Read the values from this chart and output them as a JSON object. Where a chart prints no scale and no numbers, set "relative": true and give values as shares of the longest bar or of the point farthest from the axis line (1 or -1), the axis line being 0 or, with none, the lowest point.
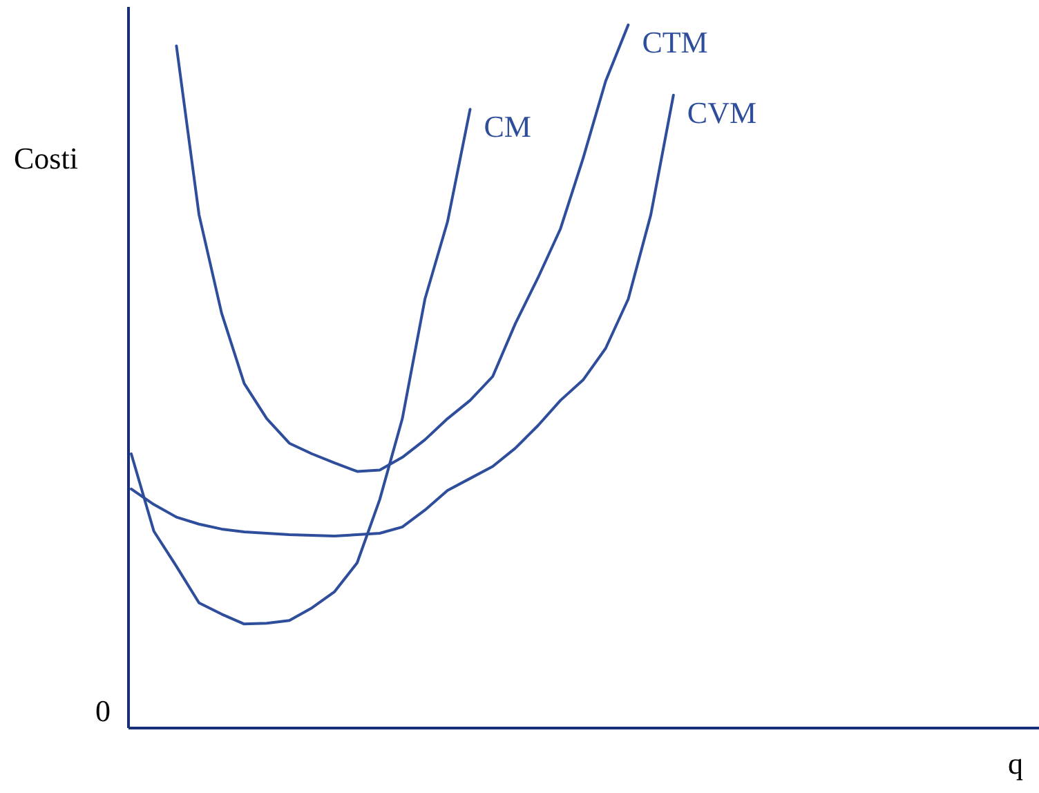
{
  "chart_data": {
    "type": "line",
    "relative": true,
    "ylabel": "Costi",
    "xlabel": "q",
    "annotations": [
      "0"
    ],
    "categories": [
      null,
      null,
      null,
      null,
      null,
      null,
      null,
      null,
      null,
      null,
      null,
      null,
      null,
      null,
      null,
      null,
      null,
      null,
      null,
      null,
      null,
      null,
      null,
      null,
      null,
      null,
      null,
      null,
      null,
      null,
      null,
      null,
      null,
      null,
      null,
      null,
      null,
      null,
      null,
      null,
      null
    ],
    "series": [
      {
        "name": "CM",
        "color": "#2e4d9b",
        "values": [
          0.39,
          0.28,
          0.23,
          0.178,
          0.162,
          0.148,
          0.149,
          0.153,
          0.171,
          0.194,
          0.235,
          0.325,
          0.44,
          0.61,
          0.72,
          0.88,
          null,
          null,
          null,
          null,
          null,
          null,
          null,
          null,
          null,
          null,
          null,
          null,
          null,
          null,
          null,
          null,
          null,
          null,
          null,
          null,
          null,
          null,
          null,
          null,
          null
        ]
      },
      {
        "name": "CTM",
        "color": "#2e4d9b",
        "values": [
          null,
          null,
          0.97,
          0.73,
          0.59,
          0.49,
          0.44,
          0.405,
          0.39,
          0.377,
          0.365,
          0.367,
          0.385,
          0.41,
          0.44,
          0.466,
          0.5,
          0.575,
          0.64,
          0.71,
          0.81,
          0.92,
          1,
          null,
          null,
          null,
          null,
          null,
          null,
          null,
          null,
          null,
          null,
          null,
          null,
          null,
          null,
          null,
          null,
          null,
          null
        ]
      },
      {
        "name": "CVM",
        "color": "#2e4d9b",
        "values": [
          0.34,
          0.318,
          0.3,
          0.29,
          0.283,
          0.279,
          0.277,
          0.275,
          0.274,
          0.273,
          0.275,
          0.277,
          0.286,
          0.31,
          0.338,
          0.355,
          0.372,
          0.398,
          0.43,
          0.466,
          0.495,
          0.54,
          0.61,
          0.73,
          0.9,
          null,
          null,
          null,
          null,
          null,
          null,
          null,
          null,
          null,
          null,
          null,
          null,
          null,
          null,
          null,
          null
        ]
      }
    ]
  }
}
